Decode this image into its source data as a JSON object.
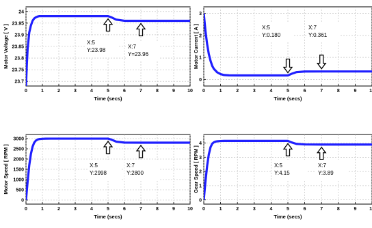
{
  "chart_data": [
    {
      "type": "line",
      "ylabel": "Motor Voltage [ V ]",
      "xlabel": "Time (secs)",
      "xlim": [
        0,
        10
      ],
      "ylim": [
        23.68,
        24.02
      ],
      "xticks": [
        "0",
        "1",
        "2",
        "3",
        "4",
        "5",
        "6",
        "7",
        "8",
        "9",
        "10"
      ],
      "yticks": [
        "23.7",
        "23.75",
        "23.8",
        "23.85",
        "23.9",
        "23.95",
        "24"
      ],
      "ytick_values": [
        23.7,
        23.75,
        23.8,
        23.85,
        23.9,
        23.95,
        24.0
      ],
      "grid": true,
      "series": [
        {
          "color": "#1f1fff",
          "x": [
            0,
            0.05,
            0.1,
            0.2,
            0.3,
            0.4,
            0.5,
            0.6,
            0.7,
            0.8,
            1.0,
            1.2,
            1.5,
            2.0,
            3.0,
            4.0,
            5.0,
            5.2,
            5.5,
            6.0,
            7.0,
            8.0,
            9.0,
            10.0
          ],
          "y": [
            23.68,
            23.77,
            23.84,
            23.91,
            23.94,
            23.96,
            23.97,
            23.975,
            23.978,
            23.98,
            23.98,
            23.98,
            23.98,
            23.98,
            23.98,
            23.98,
            23.98,
            23.975,
            23.965,
            23.96,
            23.96,
            23.96,
            23.96,
            23.96
          ]
        }
      ],
      "annotations": [
        {
          "x": 5,
          "y": 23.98,
          "label_x": "X:5",
          "label_y": "Y:23.98"
        },
        {
          "x": 7,
          "y": 23.96,
          "label_x": "X:7",
          "label_y": "Y=23.96"
        }
      ]
    },
    {
      "type": "line",
      "ylabel": "Motor Current [ A ]",
      "xlabel": "Time (secs)",
      "xlim": [
        0,
        10
      ],
      "ylim": [
        -0.3,
        3.3
      ],
      "xticks": [
        "0",
        "1",
        "2",
        "3",
        "4",
        "5",
        "6",
        "7",
        "8",
        "9",
        "10"
      ],
      "yticks": [
        "0",
        "1",
        "2",
        "3"
      ],
      "ytick_values": [
        0,
        1,
        2,
        3
      ],
      "grid": true,
      "series": [
        {
          "color": "#1f1fff",
          "x": [
            0,
            0.05,
            0.1,
            0.2,
            0.3,
            0.4,
            0.5,
            0.6,
            0.8,
            1.0,
            1.2,
            1.5,
            2.0,
            3.0,
            4.0,
            5.0,
            5.2,
            5.5,
            6.0,
            7.0,
            8.0,
            9.0,
            10.0
          ],
          "y": [
            3.0,
            2.6,
            2.2,
            1.6,
            1.15,
            0.85,
            0.62,
            0.48,
            0.32,
            0.24,
            0.2,
            0.185,
            0.18,
            0.18,
            0.18,
            0.18,
            0.25,
            0.33,
            0.36,
            0.361,
            0.361,
            0.361,
            0.361
          ]
        }
      ],
      "annotations": [
        {
          "x": 5,
          "y": 0.18,
          "label_x": "X:5",
          "label_y": "Y:0.180"
        },
        {
          "x": 7,
          "y": 0.361,
          "label_x": "X:7",
          "label_y": "Y:0.361"
        }
      ]
    },
    {
      "type": "line",
      "ylabel": "Motor Speed [ RPM ]",
      "xlabel": "Time (secs)",
      "xlim": [
        0,
        10
      ],
      "ylim": [
        -200,
        3200
      ],
      "xticks": [
        "0",
        "1",
        "2",
        "3",
        "4",
        "5",
        "6",
        "7",
        "8",
        "9",
        "10"
      ],
      "yticks": [
        "0",
        "500",
        "1000",
        "1500",
        "2000",
        "2500",
        "3000"
      ],
      "ytick_values": [
        0,
        500,
        1000,
        1500,
        2000,
        2500,
        3000
      ],
      "grid": true,
      "series": [
        {
          "color": "#1f1fff",
          "x": [
            0,
            0.1,
            0.2,
            0.3,
            0.4,
            0.5,
            0.6,
            0.7,
            0.8,
            1.0,
            1.2,
            1.5,
            2.0,
            3.0,
            4.0,
            5.0,
            5.2,
            5.5,
            6.0,
            7.0,
            8.0,
            9.0,
            10.0
          ],
          "y": [
            0,
            900,
            1700,
            2250,
            2600,
            2800,
            2900,
            2950,
            2975,
            2990,
            2996,
            2998,
            2998,
            2998,
            2998,
            2998,
            2950,
            2850,
            2805,
            2800,
            2800,
            2800,
            2800
          ]
        }
      ],
      "annotations": [
        {
          "x": 5,
          "y": 2998,
          "label_x": "X:5",
          "label_y": "Y:2998"
        },
        {
          "x": 7,
          "y": 2800,
          "label_x": "X:7",
          "label_y": "Y:2800"
        }
      ]
    },
    {
      "type": "line",
      "ylabel": "Gear Speed [ RPM ]",
      "xlabel": "Time (secs)",
      "xlim": [
        0,
        10
      ],
      "ylim": [
        -0.3,
        4.6
      ],
      "xticks": [
        "0",
        "1",
        "2",
        "3",
        "4",
        "5",
        "6",
        "7",
        "8",
        "9",
        "10"
      ],
      "yticks": [
        "0",
        "1",
        "2",
        "3",
        "4"
      ],
      "ytick_values": [
        0,
        1,
        2,
        3,
        4
      ],
      "grid": true,
      "series": [
        {
          "color": "#1f1fff",
          "x": [
            0,
            0.1,
            0.2,
            0.3,
            0.4,
            0.5,
            0.6,
            0.7,
            0.8,
            1.0,
            1.2,
            1.5,
            2.0,
            3.0,
            4.0,
            5.0,
            5.2,
            5.5,
            6.0,
            7.0,
            8.0,
            9.0,
            10.0
          ],
          "y": [
            0,
            1.3,
            2.4,
            3.2,
            3.7,
            3.95,
            4.05,
            4.1,
            4.12,
            4.14,
            4.15,
            4.15,
            4.15,
            4.15,
            4.15,
            4.15,
            4.05,
            3.94,
            3.9,
            3.89,
            3.89,
            3.89,
            3.89
          ]
        }
      ],
      "annotations": [
        {
          "x": 5,
          "y": 4.15,
          "label_x": "X:5",
          "label_y": "Y:4.15"
        },
        {
          "x": 7,
          "y": 3.89,
          "label_x": "X:7",
          "label_y": "Y:3.89"
        }
      ]
    }
  ]
}
